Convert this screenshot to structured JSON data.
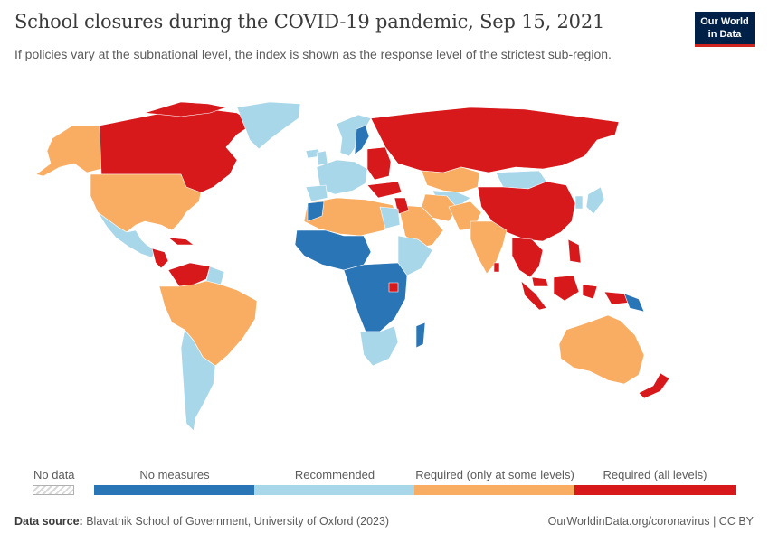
{
  "header": {
    "title": "School closures during the COVID-19 pandemic, Sep 15, 2021",
    "subtitle": "If policies vary at the subnational level, the index is shown as the response level of the strictest sub-region."
  },
  "logo": {
    "line1": "Our World",
    "line2": "in Data",
    "bg": "#002147",
    "accent": "#ce261e"
  },
  "legend": {
    "no_data_label": "No data",
    "bins": [
      {
        "label": "No measures",
        "color": "#2a75b5"
      },
      {
        "label": "Recommended",
        "color": "#a9d7ea"
      },
      {
        "label": "Required (only at some levels)",
        "color": "#f9ad63"
      },
      {
        "label": "Required (all levels)",
        "color": "#d7191c"
      }
    ]
  },
  "footer": {
    "source_label": "Data source:",
    "source_text": "Blavatnik School of Government, University of Oxford (2023)",
    "url_text": "OurWorldinData.org/coronavirus | CC BY"
  }
}
